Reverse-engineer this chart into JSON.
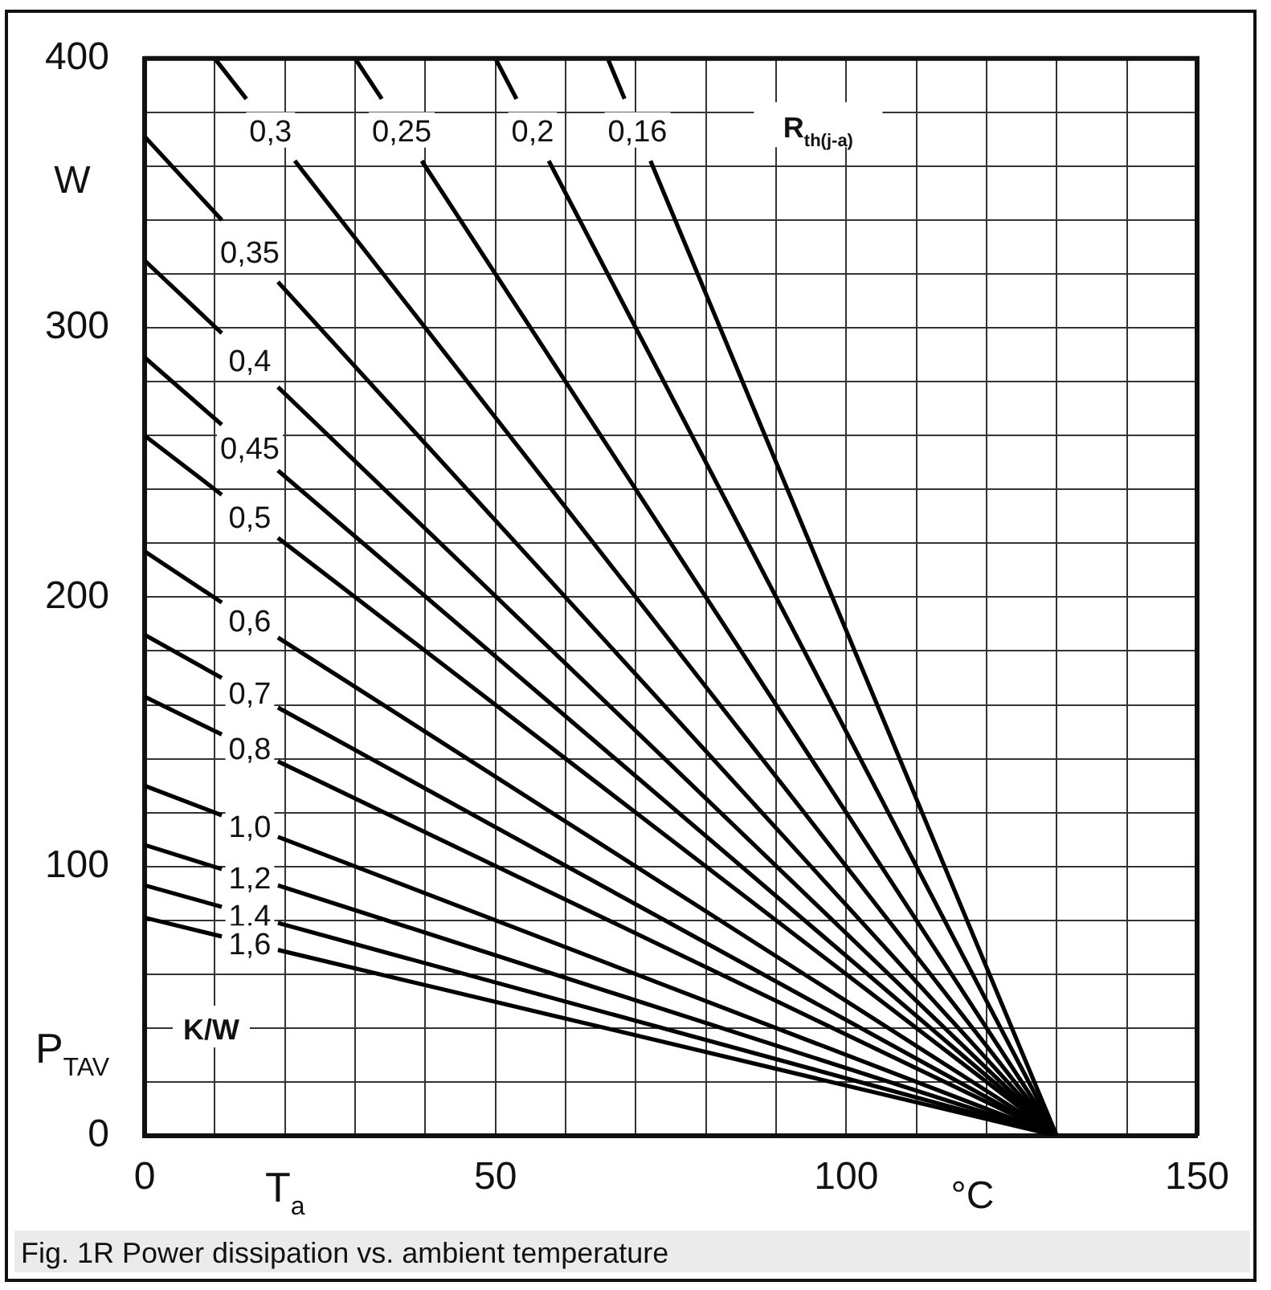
{
  "chart_data": {
    "type": "line",
    "xlabel": "T$_{a}$",
    "ylabel": "P$_{TAV}$",
    "legend_title": "R$_{th(j-a)}$",
    "annotations": [
      "W",
      "°C",
      "K/W",
      "Fig. 1R Power dissipation vs. ambient temperature"
    ],
    "xlim": [
      0,
      150
    ],
    "xticks": [
      0,
      {
        "value": 10,
        "label": null
      },
      {
        "value": 20,
        "label": null
      },
      {
        "value": 30,
        "label": null
      },
      {
        "value": 40,
        "label": null
      },
      50,
      {
        "value": 60,
        "label": null
      },
      {
        "value": 70,
        "label": null
      },
      {
        "value": 80,
        "label": null
      },
      {
        "value": 90,
        "label": null
      },
      100,
      {
        "value": 110,
        "label": null
      },
      {
        "value": 120,
        "label": null
      },
      {
        "value": 130,
        "label": null
      },
      {
        "value": 140,
        "label": null
      },
      150
    ],
    "ylim": [
      0,
      400
    ],
    "yticks": [
      0,
      {
        "value": 20,
        "label": null
      },
      {
        "value": 40,
        "label": null
      },
      {
        "value": 60,
        "label": null
      },
      {
        "value": 80,
        "label": null
      },
      100,
      {
        "value": 120,
        "label": null
      },
      {
        "value": 140,
        "label": null
      },
      {
        "value": 160,
        "label": null
      },
      {
        "value": 180,
        "label": null
      },
      200,
      {
        "value": 220,
        "label": null
      },
      {
        "value": 240,
        "label": null
      },
      {
        "value": 260,
        "label": null
      },
      {
        "value": 280,
        "label": null
      },
      300,
      {
        "value": 320,
        "label": null
      },
      {
        "value": 340,
        "label": null
      },
      {
        "value": 360,
        "label": null
      },
      {
        "value": 380,
        "label": null
      },
      400
    ],
    "grid": true,
    "legend": false,
    "marker": "none",
    "line_style": "solid",
    "series": [
      {
        "name": "0,3",
        "color": "#000000",
        "x": [
          10,
          14.5,
          null,
          21.4,
          130
        ],
        "values": [
          400,
          385,
          null,
          362,
          0
        ]
      },
      {
        "name": "0,25",
        "color": "#000000",
        "x": [
          30,
          33.8,
          null,
          39.5,
          130
        ],
        "values": [
          400,
          385,
          null,
          362,
          0
        ]
      },
      {
        "name": "0,2",
        "color": "#000000",
        "x": [
          50,
          53,
          null,
          57.6,
          130
        ],
        "values": [
          400,
          385,
          null,
          362,
          0
        ]
      },
      {
        "name": "0,16",
        "color": "#000000",
        "x": [
          66,
          68.4,
          null,
          72.1,
          130
        ],
        "values": [
          400,
          385,
          null,
          362,
          0
        ]
      },
      {
        "name": "0,35",
        "color": "#000000",
        "x": [
          0,
          11,
          null,
          19,
          130
        ],
        "values": [
          371,
          340,
          null,
          317,
          0
        ]
      },
      {
        "name": "0,4",
        "color": "#000000",
        "x": [
          0,
          11,
          null,
          19,
          130
        ],
        "values": [
          325,
          298,
          null,
          278,
          0
        ]
      },
      {
        "name": "0,45",
        "color": "#000000",
        "x": [
          0,
          11,
          null,
          19,
          130
        ],
        "values": [
          289,
          264,
          null,
          247,
          0
        ]
      },
      {
        "name": "0,5",
        "color": "#000000",
        "x": [
          0,
          11,
          null,
          19,
          130
        ],
        "values": [
          260,
          238,
          null,
          222,
          0
        ]
      },
      {
        "name": "0,6",
        "color": "#000000",
        "x": [
          0,
          11,
          null,
          19,
          130
        ],
        "values": [
          217,
          198,
          null,
          185,
          0
        ]
      },
      {
        "name": "0,7",
        "color": "#000000",
        "x": [
          0,
          11,
          null,
          19,
          130
        ],
        "values": [
          186,
          170,
          null,
          159,
          0
        ]
      },
      {
        "name": "0,8",
        "color": "#000000",
        "x": [
          0,
          11,
          null,
          19,
          130
        ],
        "values": [
          163,
          149,
          null,
          139,
          0
        ]
      },
      {
        "name": "1,0",
        "color": "#000000",
        "x": [
          0,
          11,
          null,
          19,
          130
        ],
        "values": [
          130,
          119,
          null,
          111,
          0
        ]
      },
      {
        "name": "1,2",
        "color": "#000000",
        "x": [
          0,
          11,
          null,
          19,
          130
        ],
        "values": [
          108,
          99,
          null,
          93,
          0
        ]
      },
      {
        "name": "1,4",
        "color": "#000000",
        "x": [
          0,
          11,
          null,
          19,
          130
        ],
        "values": [
          93,
          85,
          null,
          79,
          0
        ]
      },
      {
        "name": "1,6",
        "color": "#000000",
        "x": [
          0,
          11,
          null,
          19,
          130
        ],
        "values": [
          81,
          74,
          null,
          69,
          0
        ]
      }
    ]
  }
}
